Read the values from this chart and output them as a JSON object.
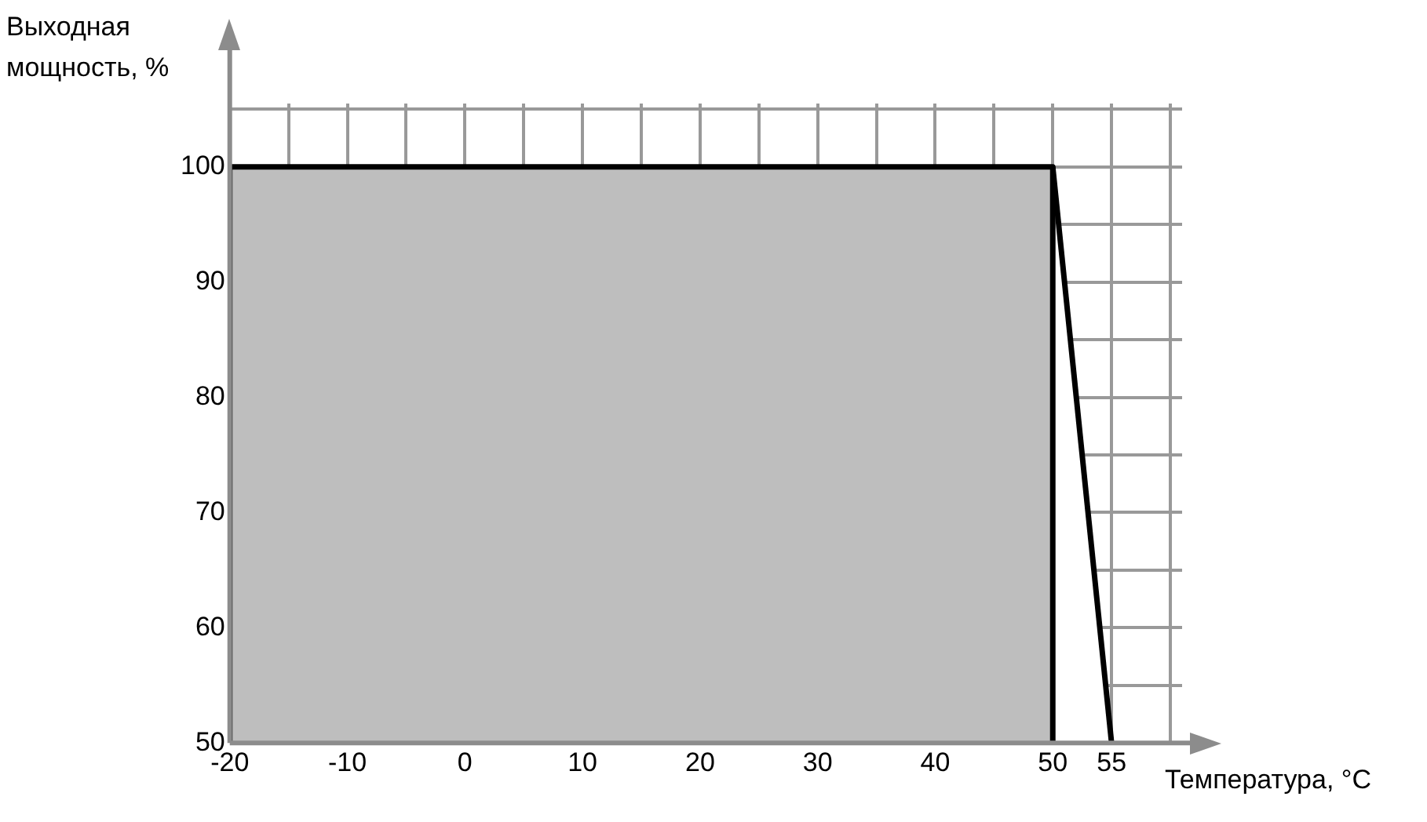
{
  "chart_data": {
    "type": "area",
    "xlabel": "Температура, °C",
    "ylabel": "Выходная мощность, %",
    "series": [
      {
        "color": "#bebebe",
        "x": [
          -20,
          -20,
          50,
          50
        ],
        "values": [
          50,
          100,
          100,
          50
        ]
      },
      {
        "color": "#ffffff",
        "x": [
          50,
          55
        ],
        "values": [
          100,
          50
        ]
      }
    ],
    "xlim": [
      -20,
      61
    ],
    "xticks": [
      -20,
      {
        "value": -15,
        "label": null
      },
      -10,
      {
        "value": -5,
        "label": null
      },
      0,
      {
        "value": 5,
        "label": null
      },
      10,
      {
        "value": 15,
        "label": null
      },
      20,
      {
        "value": 25,
        "label": null
      },
      30,
      {
        "value": 35,
        "label": null
      },
      40,
      {
        "value": 45,
        "label": null
      },
      50,
      55,
      {
        "value": 60,
        "label": null
      }
    ],
    "ylim": [
      50,
      105.5
    ],
    "yticks": [
      50,
      {
        "value": 55,
        "label": null
      },
      60,
      {
        "value": 65,
        "label": null
      },
      70,
      {
        "value": 75,
        "label": null
      },
      80,
      {
        "value": 85,
        "label": null
      },
      90,
      {
        "value": 95,
        "label": null
      },
      100,
      {
        "value": 105,
        "label": null
      }
    ],
    "grid": true,
    "legend": false,
    "marker": "none",
    "line_style": "solid"
  }
}
